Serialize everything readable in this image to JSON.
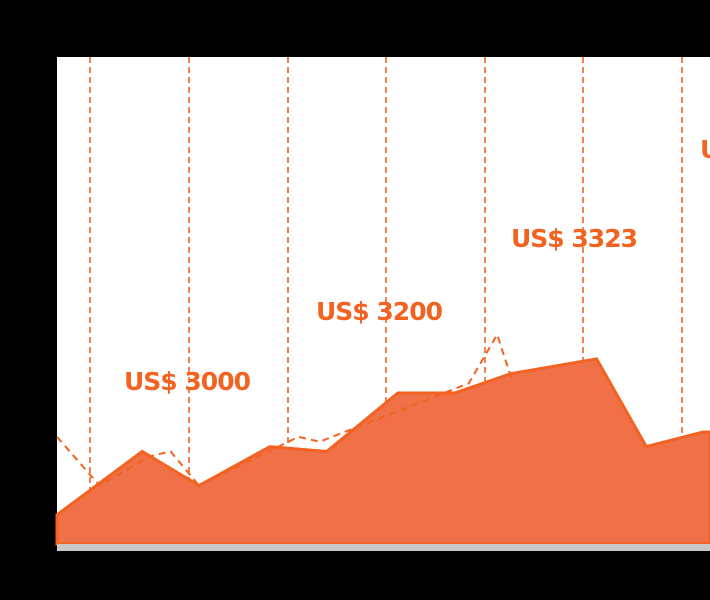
{
  "colors": {
    "background": "#000000",
    "plot_background": "#ffffff",
    "accent": "#f26322",
    "area_fill": "#f07048",
    "baseline": "#c8c8c8"
  },
  "chart_data": {
    "type": "area",
    "title": "",
    "xlabel": "",
    "ylabel": "",
    "grid": "vertical dashed lines",
    "legend": "none",
    "x": [
      0,
      1.2,
      2,
      3,
      3.8,
      4.8,
      5.6,
      6.4,
      7.6,
      8.3,
      9.1
    ],
    "ylim": [
      0,
      100
    ],
    "series": [
      {
        "values": [
          6,
          19,
          12,
          20,
          19,
          31,
          31,
          35,
          38,
          20,
          23
        ]
      }
    ],
    "dashed_series": {
      "x": [
        0,
        0.6,
        1.3,
        1.6,
        2,
        3.4,
        3.7,
        5.8,
        6.2,
        6.4
      ],
      "values": [
        22,
        12,
        18,
        19,
        12,
        22,
        21,
        33,
        43,
        34
      ]
    },
    "annotations": [
      {
        "text": "US$ 3000"
      },
      {
        "text": "US$ 3200"
      },
      {
        "text": "US$ 3323"
      },
      {
        "text": "U"
      }
    ]
  }
}
